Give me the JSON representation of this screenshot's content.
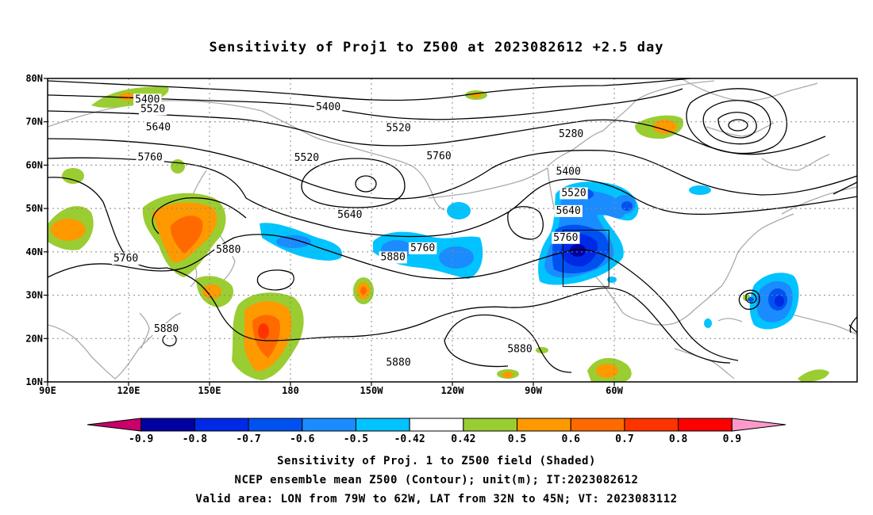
{
  "title": "Sensitivity of Proj1 to Z500 at 2023082612 +2.5 day",
  "lat_labels": [
    "80N",
    "70N",
    "60N",
    "50N",
    "40N",
    "30N",
    "20N",
    "10N"
  ],
  "lon_labels": [
    "90E",
    "120E",
    "150E",
    "180",
    "150W",
    "120W",
    "90W",
    "60W"
  ],
  "contour_levels": [
    "5400",
    "5520",
    "5640",
    "5760",
    "5880",
    "5280"
  ],
  "contour_labels": [
    {
      "text": "5400",
      "lon": 127,
      "lat": 75.2
    },
    {
      "text": "5520",
      "lon": 129,
      "lat": 73
    },
    {
      "text": "5640",
      "lon": 131,
      "lat": 68.8
    },
    {
      "text": "5760",
      "lon": 128,
      "lat": 61.8
    },
    {
      "text": "5760",
      "lon": 119,
      "lat": 38.5
    },
    {
      "text": "5880",
      "lon": 157,
      "lat": 40.5
    },
    {
      "text": "5880",
      "lon": 134,
      "lat": 22.2
    },
    {
      "text": "5400",
      "lon": -166,
      "lat": 73.4
    },
    {
      "text": "5520",
      "lon": -174,
      "lat": 61.7
    },
    {
      "text": "5640",
      "lon": -158,
      "lat": 48.6
    },
    {
      "text": "5520",
      "lon": -140,
      "lat": 68.6
    },
    {
      "text": "5760",
      "lon": -125,
      "lat": 62.1
    },
    {
      "text": "5760",
      "lon": -131,
      "lat": 40.9
    },
    {
      "text": "5880",
      "lon": -142,
      "lat": 38.8
    },
    {
      "text": "5880",
      "lon": -140,
      "lat": 14.5
    },
    {
      "text": "5880",
      "lon": -95,
      "lat": 17.6
    },
    {
      "text": "5280",
      "lon": -76,
      "lat": 67.2
    },
    {
      "text": "5400",
      "lon": -77,
      "lat": 58.5
    },
    {
      "text": "5520",
      "lon": -75,
      "lat": 53.6
    },
    {
      "text": "5640",
      "lon": -77,
      "lat": 49.5
    },
    {
      "text": "5760",
      "lon": -78,
      "lat": 43.3
    }
  ],
  "valid_box": {
    "lon_w": -79,
    "lon_e": -62,
    "lat_s": 32,
    "lat_n": 45
  },
  "colorbar": {
    "ticks": [
      "-0.9",
      "-0.8",
      "-0.7",
      "-0.6",
      "-0.5",
      "-0.42",
      "0.42",
      "0.5",
      "0.6",
      "0.7",
      "0.8",
      "0.9"
    ],
    "colors": [
      "#c9006b",
      "#0000a3",
      "#0029e6",
      "#0052f0",
      "#1a8cff",
      "#00c3ff",
      "#ffffff",
      "#9acd32",
      "#ff9900",
      "#ff6a00",
      "#ff3300",
      "#ff0000",
      "#ff99cc"
    ]
  },
  "footer": {
    "line1": "Sensitivity of Proj. 1 to Z500 field (Shaded)",
    "line2": "NCEP ensemble mean Z500 (Contour); unit(m); IT:2023082612",
    "line3": "Valid area: LON from 79W to 62W, LAT from 32N to 45N; VT: 2023083112"
  }
}
